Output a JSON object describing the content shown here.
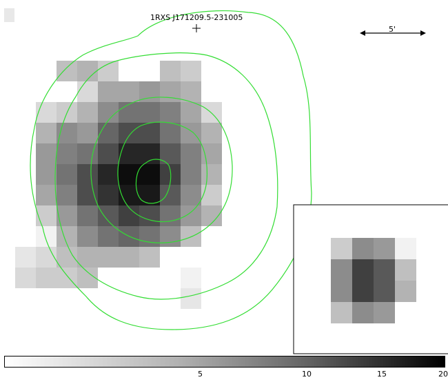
{
  "source_label": "1RXS J171209.5-231005",
  "scale_label": "5'",
  "contour_color": "#33dd33",
  "colorbar": {
    "min": 0,
    "max": 20,
    "ticks": [
      "5",
      "10",
      "15",
      "20"
    ]
  },
  "main_map_levels": [
    [
      0,
      0,
      0,
      0,
      0,
      0,
      0,
      0,
      0,
      0
    ],
    [
      0,
      0,
      0.25,
      0.3,
      0.2,
      0,
      0,
      0.25,
      0.2,
      0
    ],
    [
      0,
      0,
      0,
      0.15,
      0.35,
      0.35,
      0.4,
      0.35,
      0.3,
      0
    ],
    [
      0,
      0.15,
      0.2,
      0.3,
      0.45,
      0.55,
      0.55,
      0.5,
      0.35,
      0.15
    ],
    [
      0,
      0.3,
      0.45,
      0.4,
      0.6,
      0.7,
      0.7,
      0.55,
      0.4,
      0.3
    ],
    [
      0,
      0.4,
      0.5,
      0.55,
      0.7,
      0.85,
      0.85,
      0.65,
      0.5,
      0.35
    ],
    [
      0,
      0.4,
      0.55,
      0.7,
      0.85,
      0.95,
      0.95,
      0.75,
      0.5,
      0.3
    ],
    [
      0,
      0.35,
      0.5,
      0.7,
      0.8,
      0.9,
      0.9,
      0.65,
      0.45,
      0.2
    ],
    [
      0,
      0.2,
      0.4,
      0.55,
      0.65,
      0.75,
      0.7,
      0.55,
      0.4,
      0.3
    ],
    [
      0,
      0.05,
      0.3,
      0.45,
      0.55,
      0.6,
      0.55,
      0.45,
      0.25,
      0
    ],
    [
      0.1,
      0.15,
      0.25,
      0.3,
      0.3,
      0.3,
      0.25,
      0,
      0,
      0
    ],
    [
      0.15,
      0.2,
      0.2,
      0.25,
      0,
      0,
      0,
      0,
      0.05,
      0
    ],
    [
      0,
      0,
      0,
      0,
      0,
      0,
      0,
      0,
      0.1,
      0
    ]
  ],
  "inset_map_levels": [
    [
      0.2,
      0.45,
      0.4,
      0.05
    ],
    [
      0.45,
      0.75,
      0.65,
      0.25
    ],
    [
      0.45,
      0.75,
      0.65,
      0.3
    ],
    [
      0.25,
      0.45,
      0.4,
      0
    ]
  ]
}
